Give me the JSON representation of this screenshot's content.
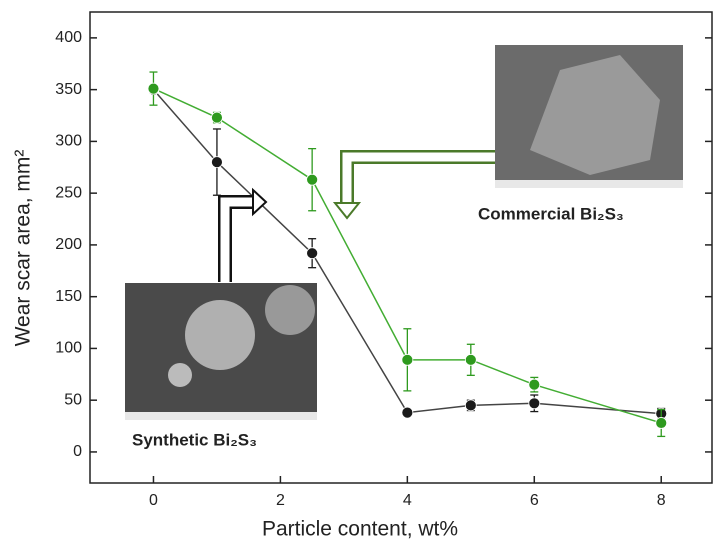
{
  "chart_data": {
    "type": "line",
    "x_label": "Particle content, wt%",
    "y_label": "Wear scar area, mm²",
    "annotations": [
      "Commercial Bi₂S₃",
      "Synthetic Bi₂S₃"
    ],
    "x": [
      0,
      1,
      2.5,
      4,
      5,
      6,
      8
    ],
    "series": [
      {
        "name": "Synthetic Bi₂S₃",
        "color": "#1a1a1a",
        "line_color": "#444444",
        "values": [
          350,
          280,
          192,
          38,
          45,
          47,
          37
        ],
        "errors": [
          0,
          32,
          14,
          3,
          5,
          8,
          5
        ]
      },
      {
        "name": "Commercial Bi₂S₃",
        "color": "#2e9a1e",
        "line_color": "#43ad33",
        "values": [
          351,
          323,
          263,
          89,
          89,
          65,
          28
        ],
        "errors": [
          16,
          5,
          30,
          30,
          15,
          7,
          13
        ]
      }
    ],
    "xlim": [
      -1,
      8.8
    ],
    "ylim": [
      -30,
      425
    ],
    "xticks": [
      0,
      2,
      4,
      6,
      8
    ],
    "yticks": [
      0,
      50,
      100,
      150,
      200,
      250,
      300,
      350,
      400
    ]
  }
}
